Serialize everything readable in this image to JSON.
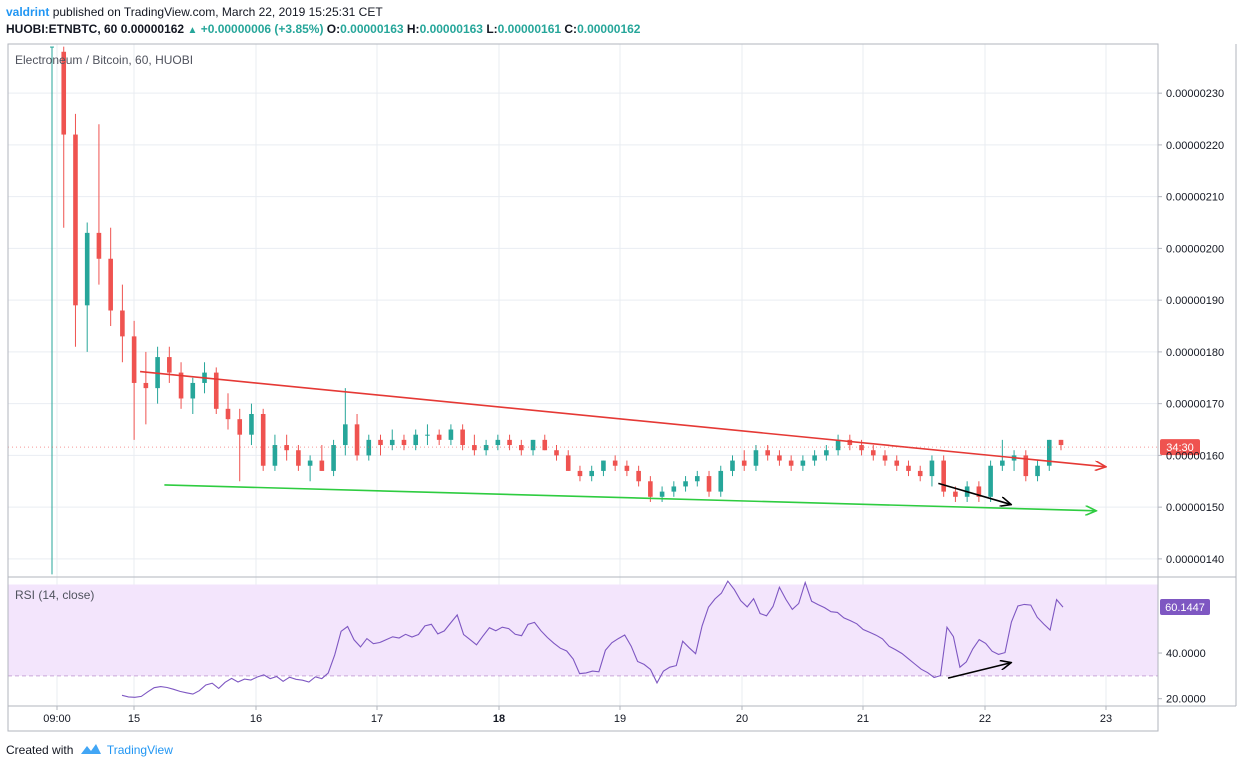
{
  "header": {
    "user": "valdrint",
    "published_text": "published on TradingView.com, March 22, 2019 15:25:31 CET",
    "symbol": "HUOBI:ETNBTC, 60",
    "price": "0.00000162",
    "change": "+0.00000006 (+3.85%)",
    "o_label": "O:",
    "o_value": "0.00000163",
    "h_label": "H:",
    "h_value": "0.00000163",
    "l_label": "L:",
    "l_value": "0.00000161",
    "c_label": "C:",
    "c_value": "0.00000162",
    "up_icon": "triangle-up-icon"
  },
  "footer": {
    "created_with": "Created with",
    "brand": "TradingView",
    "logo_icon": "tradingview-logo-icon"
  },
  "colors": {
    "up": "#26a69a",
    "down": "#ef5350",
    "resistance_line": "#e53935",
    "support_line": "#2ecc40",
    "rsi_line": "#7e57c2",
    "rsi_band": "#f3e5fc",
    "price_tag": "#ef5350",
    "rsi_tag": "#7e57c2"
  },
  "chart_data": [
    {
      "type": "candlestick",
      "title": "Electroneum / Bitcoin, 60, HUOBI",
      "ylim": [
        1.365e-06,
        2.395e-06
      ],
      "y_ticks": [
        "0.00000140",
        "0.00000150",
        "0.00000160",
        "0.00000170",
        "0.00000180",
        "0.00000190",
        "0.00000200",
        "0.00000210",
        "0.00000220",
        "0.00000230"
      ],
      "x_ticks": [
        "09:00",
        "15",
        "16",
        "17",
        "18",
        "19",
        "20",
        "21",
        "22",
        "23"
      ],
      "bold_x_ticks": [
        "18"
      ],
      "countdown_label": "34:30",
      "current_price": 1.616e-06,
      "grid": true,
      "candles": [
        {
          "o": 2.39e-06,
          "h": 2.39e-06,
          "l": 1.37e-06,
          "c": 2.39e-06
        },
        {
          "o": 2.38e-06,
          "h": 2.39e-06,
          "l": 2.04e-06,
          "c": 2.22e-06
        },
        {
          "o": 2.22e-06,
          "h": 2.26e-06,
          "l": 1.81e-06,
          "c": 1.89e-06
        },
        {
          "o": 1.89e-06,
          "h": 2.05e-06,
          "l": 1.8e-06,
          "c": 2.03e-06
        },
        {
          "o": 2.03e-06,
          "h": 2.24e-06,
          "l": 1.93e-06,
          "c": 1.98e-06
        },
        {
          "o": 1.98e-06,
          "h": 2.04e-06,
          "l": 1.85e-06,
          "c": 1.88e-06
        },
        {
          "o": 1.88e-06,
          "h": 1.93e-06,
          "l": 1.78e-06,
          "c": 1.83e-06
        },
        {
          "o": 1.83e-06,
          "h": 1.86e-06,
          "l": 1.63e-06,
          "c": 1.74e-06
        },
        {
          "o": 1.74e-06,
          "h": 1.8e-06,
          "l": 1.66e-06,
          "c": 1.73e-06
        },
        {
          "o": 1.73e-06,
          "h": 1.81e-06,
          "l": 1.7e-06,
          "c": 1.79e-06
        },
        {
          "o": 1.79e-06,
          "h": 1.81e-06,
          "l": 1.74e-06,
          "c": 1.76e-06
        },
        {
          "o": 1.76e-06,
          "h": 1.78e-06,
          "l": 1.69e-06,
          "c": 1.71e-06
        },
        {
          "o": 1.71e-06,
          "h": 1.75e-06,
          "l": 1.68e-06,
          "c": 1.74e-06
        },
        {
          "o": 1.74e-06,
          "h": 1.78e-06,
          "l": 1.72e-06,
          "c": 1.76e-06
        },
        {
          "o": 1.76e-06,
          "h": 1.77e-06,
          "l": 1.68e-06,
          "c": 1.69e-06
        },
        {
          "o": 1.69e-06,
          "h": 1.72e-06,
          "l": 1.65e-06,
          "c": 1.67e-06
        },
        {
          "o": 1.67e-06,
          "h": 1.69e-06,
          "l": 1.55e-06,
          "c": 1.64e-06
        },
        {
          "o": 1.64e-06,
          "h": 1.7e-06,
          "l": 1.62e-06,
          "c": 1.68e-06
        },
        {
          "o": 1.68e-06,
          "h": 1.69e-06,
          "l": 1.57e-06,
          "c": 1.58e-06
        },
        {
          "o": 1.58e-06,
          "h": 1.64e-06,
          "l": 1.57e-06,
          "c": 1.62e-06
        },
        {
          "o": 1.62e-06,
          "h": 1.64e-06,
          "l": 1.59e-06,
          "c": 1.61e-06
        },
        {
          "o": 1.61e-06,
          "h": 1.62e-06,
          "l": 1.57e-06,
          "c": 1.58e-06
        },
        {
          "o": 1.58e-06,
          "h": 1.6e-06,
          "l": 1.55e-06,
          "c": 1.59e-06
        },
        {
          "o": 1.59e-06,
          "h": 1.62e-06,
          "l": 1.57e-06,
          "c": 1.57e-06
        },
        {
          "o": 1.57e-06,
          "h": 1.63e-06,
          "l": 1.56e-06,
          "c": 1.62e-06
        },
        {
          "o": 1.62e-06,
          "h": 1.73e-06,
          "l": 1.6e-06,
          "c": 1.66e-06
        },
        {
          "o": 1.66e-06,
          "h": 1.68e-06,
          "l": 1.59e-06,
          "c": 1.6e-06
        },
        {
          "o": 1.6e-06,
          "h": 1.64e-06,
          "l": 1.59e-06,
          "c": 1.63e-06
        },
        {
          "o": 1.63e-06,
          "h": 1.64e-06,
          "l": 1.6e-06,
          "c": 1.62e-06
        },
        {
          "o": 1.62e-06,
          "h": 1.65e-06,
          "l": 1.61e-06,
          "c": 1.63e-06
        },
        {
          "o": 1.63e-06,
          "h": 1.64e-06,
          "l": 1.61e-06,
          "c": 1.62e-06
        },
        {
          "o": 1.62e-06,
          "h": 1.65e-06,
          "l": 1.61e-06,
          "c": 1.64e-06
        },
        {
          "o": 1.64e-06,
          "h": 1.66e-06,
          "l": 1.62e-06,
          "c": 1.64e-06
        },
        {
          "o": 1.64e-06,
          "h": 1.65e-06,
          "l": 1.62e-06,
          "c": 1.63e-06
        },
        {
          "o": 1.63e-06,
          "h": 1.66e-06,
          "l": 1.62e-06,
          "c": 1.65e-06
        },
        {
          "o": 1.65e-06,
          "h": 1.66e-06,
          "l": 1.61e-06,
          "c": 1.62e-06
        },
        {
          "o": 1.62e-06,
          "h": 1.64e-06,
          "l": 1.6e-06,
          "c": 1.61e-06
        },
        {
          "o": 1.61e-06,
          "h": 1.63e-06,
          "l": 1.6e-06,
          "c": 1.62e-06
        },
        {
          "o": 1.62e-06,
          "h": 1.64e-06,
          "l": 1.61e-06,
          "c": 1.63e-06
        },
        {
          "o": 1.63e-06,
          "h": 1.64e-06,
          "l": 1.61e-06,
          "c": 1.62e-06
        },
        {
          "o": 1.62e-06,
          "h": 1.63e-06,
          "l": 1.6e-06,
          "c": 1.61e-06
        },
        {
          "o": 1.61e-06,
          "h": 1.63e-06,
          "l": 1.6e-06,
          "c": 1.63e-06
        },
        {
          "o": 1.63e-06,
          "h": 1.64e-06,
          "l": 1.61e-06,
          "c": 1.61e-06
        },
        {
          "o": 1.61e-06,
          "h": 1.62e-06,
          "l": 1.59e-06,
          "c": 1.6e-06
        },
        {
          "o": 1.6e-06,
          "h": 1.61e-06,
          "l": 1.57e-06,
          "c": 1.57e-06
        },
        {
          "o": 1.57e-06,
          "h": 1.58e-06,
          "l": 1.55e-06,
          "c": 1.56e-06
        },
        {
          "o": 1.56e-06,
          "h": 1.58e-06,
          "l": 1.55e-06,
          "c": 1.57e-06
        },
        {
          "o": 1.57e-06,
          "h": 1.59e-06,
          "l": 1.56e-06,
          "c": 1.59e-06
        },
        {
          "o": 1.59e-06,
          "h": 1.6e-06,
          "l": 1.57e-06,
          "c": 1.58e-06
        },
        {
          "o": 1.58e-06,
          "h": 1.59e-06,
          "l": 1.56e-06,
          "c": 1.57e-06
        },
        {
          "o": 1.57e-06,
          "h": 1.58e-06,
          "l": 1.54e-06,
          "c": 1.55e-06
        },
        {
          "o": 1.55e-06,
          "h": 1.56e-06,
          "l": 1.51e-06,
          "c": 1.52e-06
        },
        {
          "o": 1.52e-06,
          "h": 1.54e-06,
          "l": 1.51e-06,
          "c": 1.53e-06
        },
        {
          "o": 1.53e-06,
          "h": 1.55e-06,
          "l": 1.52e-06,
          "c": 1.54e-06
        },
        {
          "o": 1.54e-06,
          "h": 1.56e-06,
          "l": 1.53e-06,
          "c": 1.55e-06
        },
        {
          "o": 1.55e-06,
          "h": 1.57e-06,
          "l": 1.54e-06,
          "c": 1.56e-06
        },
        {
          "o": 1.56e-06,
          "h": 1.57e-06,
          "l": 1.52e-06,
          "c": 1.53e-06
        },
        {
          "o": 1.53e-06,
          "h": 1.58e-06,
          "l": 1.52e-06,
          "c": 1.57e-06
        },
        {
          "o": 1.57e-06,
          "h": 1.6e-06,
          "l": 1.56e-06,
          "c": 1.59e-06
        },
        {
          "o": 1.59e-06,
          "h": 1.61e-06,
          "l": 1.57e-06,
          "c": 1.58e-06
        },
        {
          "o": 1.58e-06,
          "h": 1.62e-06,
          "l": 1.57e-06,
          "c": 1.61e-06
        },
        {
          "o": 1.61e-06,
          "h": 1.62e-06,
          "l": 1.59e-06,
          "c": 1.6e-06
        },
        {
          "o": 1.6e-06,
          "h": 1.61e-06,
          "l": 1.58e-06,
          "c": 1.59e-06
        },
        {
          "o": 1.59e-06,
          "h": 1.6e-06,
          "l": 1.57e-06,
          "c": 1.58e-06
        },
        {
          "o": 1.58e-06,
          "h": 1.6e-06,
          "l": 1.57e-06,
          "c": 1.59e-06
        },
        {
          "o": 1.59e-06,
          "h": 1.61e-06,
          "l": 1.58e-06,
          "c": 1.6e-06
        },
        {
          "o": 1.6e-06,
          "h": 1.62e-06,
          "l": 1.59e-06,
          "c": 1.61e-06
        },
        {
          "o": 1.61e-06,
          "h": 1.64e-06,
          "l": 1.6e-06,
          "c": 1.63e-06
        },
        {
          "o": 1.63e-06,
          "h": 1.64e-06,
          "l": 1.61e-06,
          "c": 1.62e-06
        },
        {
          "o": 1.62e-06,
          "h": 1.63e-06,
          "l": 1.6e-06,
          "c": 1.61e-06
        },
        {
          "o": 1.61e-06,
          "h": 1.62e-06,
          "l": 1.59e-06,
          "c": 1.6e-06
        },
        {
          "o": 1.6e-06,
          "h": 1.61e-06,
          "l": 1.58e-06,
          "c": 1.59e-06
        },
        {
          "o": 1.59e-06,
          "h": 1.6e-06,
          "l": 1.57e-06,
          "c": 1.58e-06
        },
        {
          "o": 1.58e-06,
          "h": 1.59e-06,
          "l": 1.56e-06,
          "c": 1.57e-06
        },
        {
          "o": 1.57e-06,
          "h": 1.58e-06,
          "l": 1.55e-06,
          "c": 1.56e-06
        },
        {
          "o": 1.56e-06,
          "h": 1.6e-06,
          "l": 1.54e-06,
          "c": 1.59e-06
        },
        {
          "o": 1.59e-06,
          "h": 1.6e-06,
          "l": 1.52e-06,
          "c": 1.53e-06
        },
        {
          "o": 1.53e-06,
          "h": 1.54e-06,
          "l": 1.51e-06,
          "c": 1.52e-06
        },
        {
          "o": 1.52e-06,
          "h": 1.55e-06,
          "l": 1.51e-06,
          "c": 1.54e-06
        },
        {
          "o": 1.54e-06,
          "h": 1.55e-06,
          "l": 1.51e-06,
          "c": 1.52e-06
        },
        {
          "o": 1.52e-06,
          "h": 1.59e-06,
          "l": 1.51e-06,
          "c": 1.58e-06
        },
        {
          "o": 1.58e-06,
          "h": 1.63e-06,
          "l": 1.57e-06,
          "c": 1.59e-06
        },
        {
          "o": 1.59e-06,
          "h": 1.61e-06,
          "l": 1.57e-06,
          "c": 1.6e-06
        },
        {
          "o": 1.6e-06,
          "h": 1.61e-06,
          "l": 1.55e-06,
          "c": 1.56e-06
        },
        {
          "o": 1.56e-06,
          "h": 1.59e-06,
          "l": 1.55e-06,
          "c": 1.58e-06
        },
        {
          "o": 1.58e-06,
          "h": 1.63e-06,
          "l": 1.57e-06,
          "c": 1.63e-06
        },
        {
          "o": 1.63e-06,
          "h": 1.63e-06,
          "l": 1.61e-06,
          "c": 1.62e-06
        }
      ],
      "trendlines": [
        {
          "name": "resistance",
          "from": {
            "t": 15.05,
            "p": 1.762e-06
          },
          "to": {
            "t": 23.0,
            "p": 1.578e-06
          },
          "arrow": true
        },
        {
          "name": "support",
          "from": {
            "t": 15.25,
            "p": 1.543e-06
          },
          "to": {
            "t": 22.92,
            "p": 1.493e-06
          },
          "arrow": true
        },
        {
          "name": "price-arrow",
          "from": {
            "t": 21.62,
            "p": 1.546e-06
          },
          "to": {
            "t": 22.22,
            "p": 1.505e-06
          },
          "arrow": true
        }
      ]
    },
    {
      "type": "line",
      "title": "RSI (14, close)",
      "ylim": [
        16.8,
        73.3
      ],
      "y_ticks": [
        20,
        40
      ],
      "y_tick_labels": [
        "20.0000",
        "40.0000"
      ],
      "band": [
        30,
        70
      ],
      "dashed_level": 30,
      "last_value_label": "60.1447",
      "series": [
        {
          "values": [
            21.5,
            20.8,
            20.6,
            21.0,
            23.0,
            24.8,
            25.3,
            24.9,
            24.1,
            23.2,
            22.6,
            22.0,
            23.5,
            26.0,
            26.8,
            24.5,
            27.2,
            28.9,
            27.3,
            28.6,
            28.2,
            29.5,
            30.4,
            28.8,
            29.7,
            27.6,
            29.4,
            28.5,
            28.1,
            27.3,
            29.6,
            28.8,
            31.2,
            39.2,
            49.5,
            51.6,
            45.8,
            42.7,
            46.3,
            44.1,
            44.6,
            45.9,
            47.1,
            46.6,
            48.2,
            47.0,
            48.1,
            51.9,
            52.6,
            48.4,
            49.7,
            53.2,
            56.7,
            48.1,
            45.9,
            43.6,
            47.4,
            51.1,
            49.8,
            51.3,
            50.7,
            48.2,
            47.6,
            52.6,
            53.4,
            49.8,
            46.8,
            44.3,
            42.1,
            40.9,
            37.4,
            31.0,
            31.3,
            32.1,
            31.8,
            41.2,
            44.5,
            46.3,
            47.9,
            43.0,
            36.3,
            35.0,
            32.8,
            26.9,
            32.1,
            33.8,
            34.5,
            45.2,
            42.3,
            39.7,
            51.9,
            60.1,
            63.7,
            66.2,
            71.5,
            67.8,
            62.9,
            60.2,
            63.8,
            57.3,
            56.3,
            60.4,
            68.8,
            63.5,
            59.1,
            61.7,
            70.9,
            62.7,
            61.2,
            59.9,
            58.1,
            57.8,
            55.4,
            54.2,
            52.8,
            50.3,
            49.1,
            47.8,
            46.2,
            43.0,
            41.5,
            39.8,
            37.5,
            35.2,
            32.9,
            31.4,
            29.3,
            30.1,
            51.3,
            47.2,
            33.8,
            36.1,
            41.8,
            45.9,
            44.2,
            40.8,
            39.4,
            40.2,
            53.6,
            60.6,
            61.3,
            61.0,
            55.7,
            52.7,
            50.1,
            63.4,
            60.1
          ]
        }
      ],
      "trendlines": [
        {
          "name": "rsi-arrow",
          "from": {
            "t": 21.7,
            "v": 29.0
          },
          "to": {
            "t": 22.22,
            "v": 35.8
          },
          "arrow": true
        }
      ]
    }
  ]
}
